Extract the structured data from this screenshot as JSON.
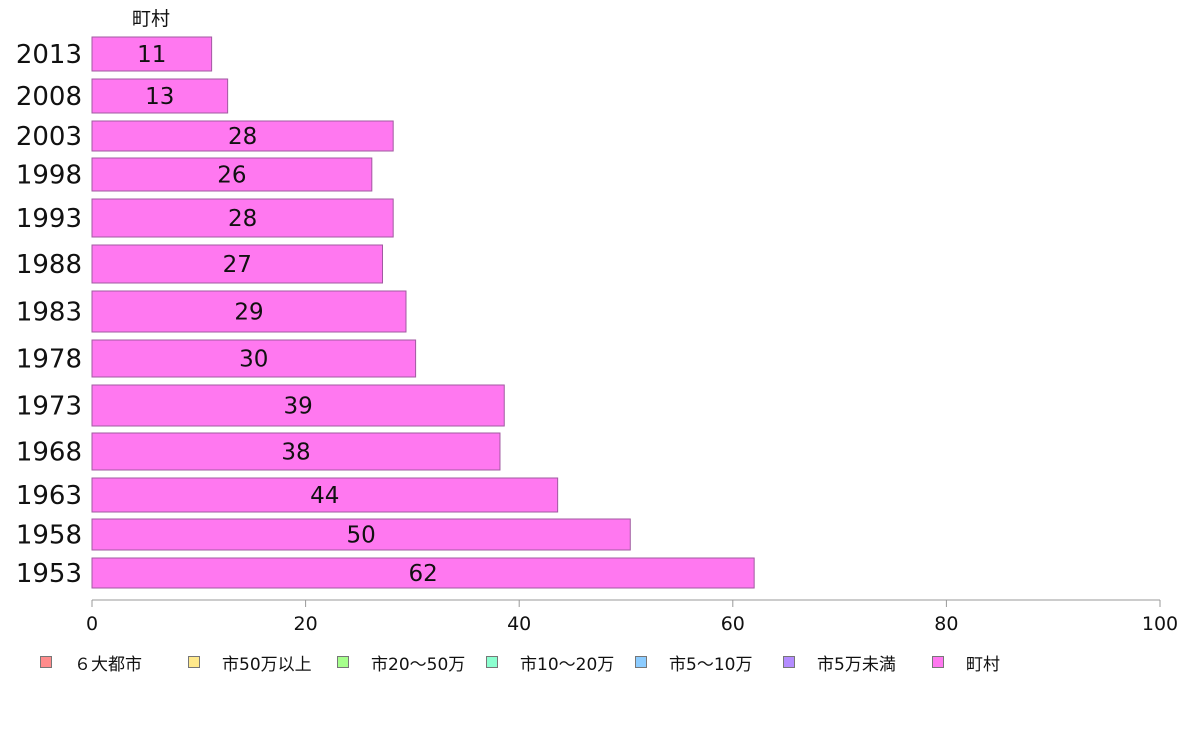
{
  "chart_data": {
    "type": "bar",
    "orientation": "horizontal",
    "stacked": true,
    "series_label_top": "町村",
    "categories": [
      "2013",
      "2008",
      "2003",
      "1998",
      "1993",
      "1988",
      "1983",
      "1978",
      "1973",
      "1968",
      "1963",
      "1958",
      "1953"
    ],
    "series": [
      {
        "name": "６大都市",
        "color": "#ff8c8c",
        "values": [
          0,
          0,
          0,
          0,
          0,
          0,
          0,
          0,
          0,
          0,
          0,
          0,
          0
        ]
      },
      {
        "name": "市50万以上",
        "color": "#ffe98c",
        "values": [
          0,
          0,
          0,
          0,
          0,
          0,
          0,
          0,
          0,
          0,
          0,
          0,
          0
        ]
      },
      {
        "name": "市20～50万",
        "color": "#a6ff8c",
        "values": [
          0,
          0,
          0,
          0,
          0,
          0,
          0,
          0,
          0,
          0,
          0,
          0,
          0
        ]
      },
      {
        "name": "市10～20万",
        "color": "#8cffd0",
        "values": [
          0,
          0,
          0,
          0,
          0,
          0,
          0,
          0,
          0,
          0,
          0,
          0,
          0
        ]
      },
      {
        "name": "市5～10万",
        "color": "#8cccff",
        "values": [
          0,
          0,
          0,
          0,
          0,
          0,
          0,
          0,
          0,
          0,
          0,
          0,
          0
        ]
      },
      {
        "name": "市5万未満",
        "color": "#b48cff",
        "values": [
          0,
          0,
          0,
          0,
          0,
          0,
          0,
          0,
          0,
          0,
          0,
          0,
          0
        ]
      },
      {
        "name": "町村",
        "color": "#ff78f0",
        "values": [
          11.2,
          12.7,
          28.2,
          26.2,
          28.2,
          27.2,
          29.4,
          30.3,
          38.6,
          38.2,
          43.6,
          50.4,
          62.0
        ]
      }
    ],
    "data_labels": [
      "11",
      "13",
      "28",
      "26",
      "28",
      "27",
      "29",
      "30",
      "39",
      "38",
      "44",
      "50",
      "62"
    ],
    "xlim": [
      0,
      100
    ],
    "xticks": [
      "0",
      "20",
      "40",
      "60",
      "80",
      "100"
    ],
    "grid": false,
    "legend_position": "bottom"
  }
}
